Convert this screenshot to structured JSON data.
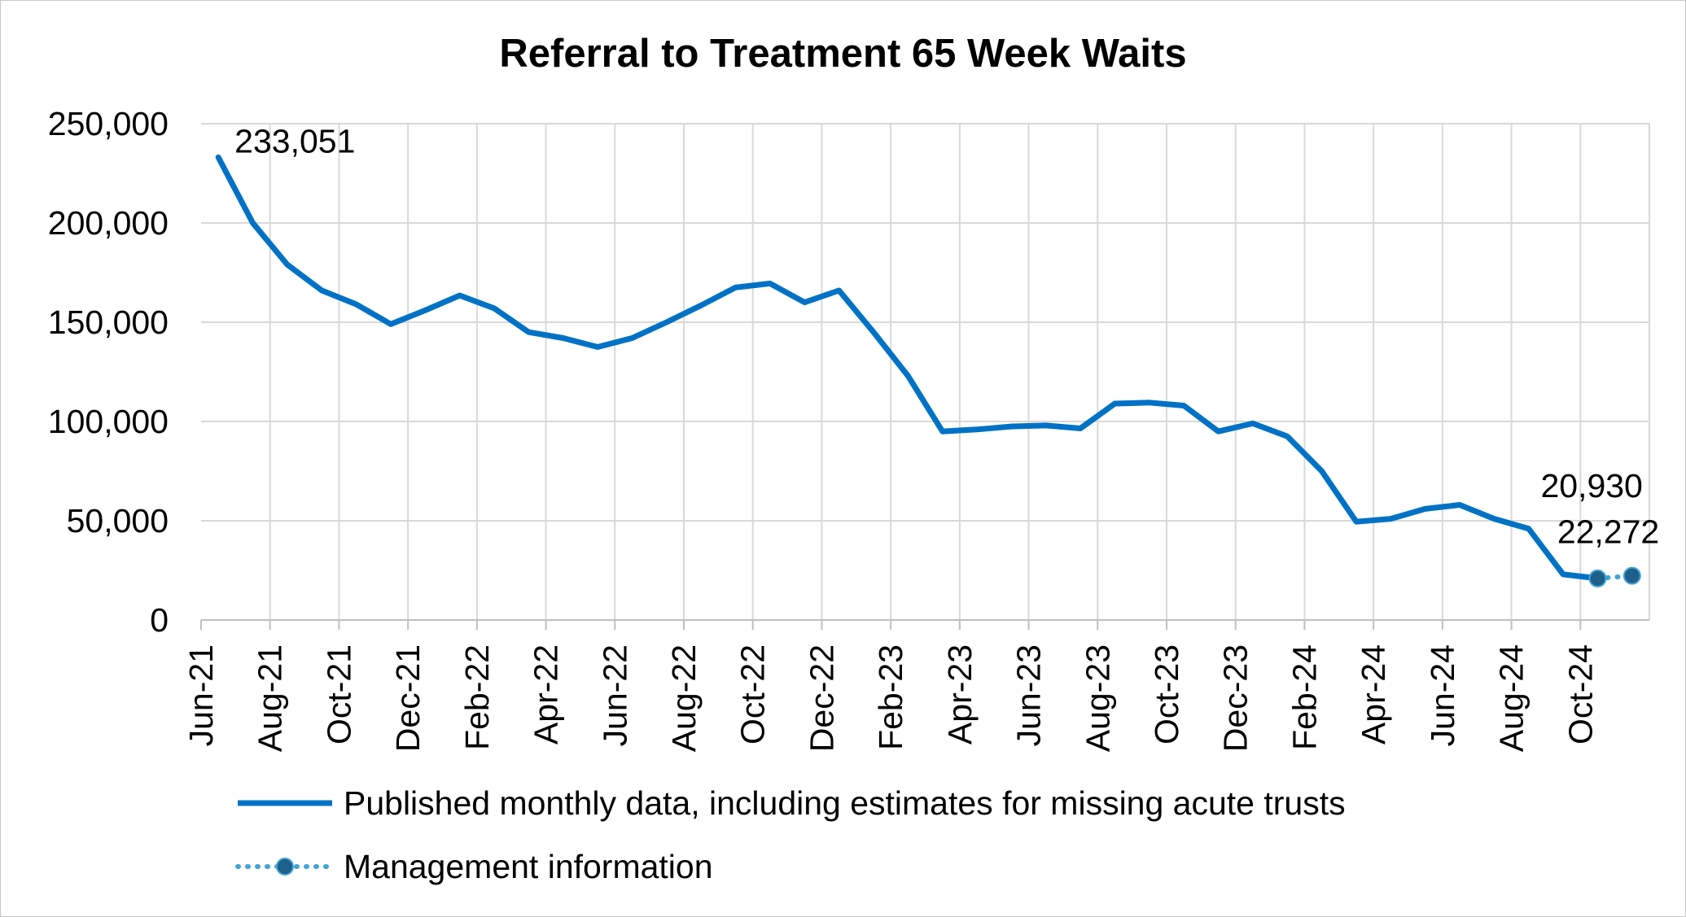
{
  "chart_data": {
    "type": "line",
    "title": "Referral to Treatment 65 Week Waits",
    "xlabel": "",
    "ylabel": "",
    "ylim": [
      0,
      250000
    ],
    "yticks": [
      "0",
      "50,000",
      "100,000",
      "150,000",
      "200,000",
      "250,000"
    ],
    "y_tick_values": [
      0,
      50000,
      100000,
      150000,
      200000,
      250000
    ],
    "grid": true,
    "legend_position": "bottom",
    "categories": [
      "Jun-21",
      "Jul-21",
      "Aug-21",
      "Sep-21",
      "Oct-21",
      "Nov-21",
      "Dec-21",
      "Jan-22",
      "Feb-22",
      "Mar-22",
      "Apr-22",
      "May-22",
      "Jun-22",
      "Jul-22",
      "Aug-22",
      "Sep-22",
      "Oct-22",
      "Nov-22",
      "Dec-22",
      "Jan-23",
      "Feb-23",
      "Mar-23",
      "Apr-23",
      "May-23",
      "Jun-23",
      "Jul-23",
      "Aug-23",
      "Sep-23",
      "Oct-23",
      "Nov-23",
      "Dec-23",
      "Jan-24",
      "Feb-24",
      "Mar-24",
      "Apr-24",
      "May-24",
      "Jun-24",
      "Jul-24",
      "Aug-24",
      "Sep-24",
      "Oct-24",
      "Nov-24"
    ],
    "x_tick_labels": [
      "Jun-21",
      "Aug-21",
      "Oct-21",
      "Dec-21",
      "Feb-22",
      "Apr-22",
      "Jun-22",
      "Aug-22",
      "Oct-22",
      "Dec-22",
      "Feb-23",
      "Apr-23",
      "Jun-23",
      "Aug-23",
      "Oct-23",
      "Dec-23",
      "Feb-24",
      "Apr-24",
      "Jun-24",
      "Aug-24",
      "Oct-24"
    ],
    "series": [
      {
        "name": "Published monthly data, including estimates for missing acute trusts",
        "color": "#0072C6",
        "style": "solid",
        "values": [
          233051,
          200000,
          179000,
          166000,
          159000,
          149000,
          156000,
          163500,
          157000,
          145000,
          142000,
          137500,
          142000,
          150000,
          158500,
          167500,
          169500,
          160000,
          166000,
          145000,
          123000,
          95000,
          96000,
          97500,
          98000,
          96500,
          109000,
          109500,
          108000,
          95000,
          99000,
          92500,
          75000,
          49500,
          51000,
          56000,
          58000,
          51000,
          46000,
          23000,
          20930,
          null
        ]
      },
      {
        "name": "Management information",
        "color": "#41A5D6",
        "marker_color": "#1F5F8B",
        "style": "dotted",
        "values": [
          null,
          null,
          null,
          null,
          null,
          null,
          null,
          null,
          null,
          null,
          null,
          null,
          null,
          null,
          null,
          null,
          null,
          null,
          null,
          null,
          null,
          null,
          null,
          null,
          null,
          null,
          null,
          null,
          null,
          null,
          null,
          null,
          null,
          null,
          null,
          null,
          null,
          null,
          null,
          null,
          20930,
          22272
        ]
      }
    ],
    "annotations": [
      {
        "text": "233,051",
        "category": "Jun-21"
      },
      {
        "text": "20,930",
        "category": "Oct-24"
      },
      {
        "text": "22,272",
        "category": "Nov-24"
      }
    ]
  },
  "legend": {
    "items": [
      {
        "label": "Published monthly data, including estimates for missing acute trusts"
      },
      {
        "label": "Management information"
      }
    ]
  }
}
